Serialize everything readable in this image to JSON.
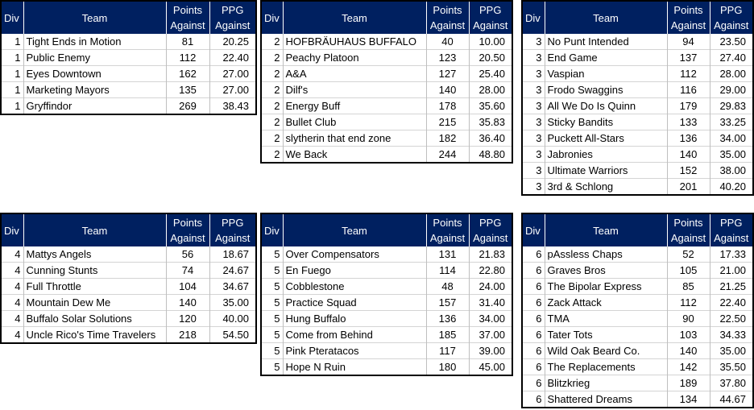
{
  "colors": {
    "header_bg": "#002060",
    "header_text": "#ffffff"
  },
  "headers": {
    "div": "Div",
    "team": "Team",
    "points": "Points\nAgainst",
    "ppg": "PPG\nAgainst"
  },
  "tables": [
    {
      "rows": [
        [
          "1",
          "Tight Ends in Motion",
          "81",
          "20.25"
        ],
        [
          "1",
          "Public Enemy",
          "112",
          "22.40"
        ],
        [
          "1",
          "Eyes Downtown",
          "162",
          "27.00"
        ],
        [
          "1",
          "Marketing Mayors",
          "135",
          "27.00"
        ],
        [
          "1",
          "Gryffindor",
          "269",
          "38.43"
        ]
      ]
    },
    {
      "rows": [
        [
          "2",
          "HOFBRÄUHAUS BUFFALO",
          "40",
          "10.00"
        ],
        [
          "2",
          "Peachy Platoon",
          "123",
          "20.50"
        ],
        [
          "2",
          "A&A",
          "127",
          "25.40"
        ],
        [
          "2",
          "Dilf's",
          "140",
          "28.00"
        ],
        [
          "2",
          "Energy Buff",
          "178",
          "35.60"
        ],
        [
          "2",
          "Bullet Club",
          "215",
          "35.83"
        ],
        [
          "2",
          "slytherin that end zone",
          "182",
          "36.40"
        ],
        [
          "2",
          "We Back",
          "244",
          "48.80"
        ]
      ]
    },
    {
      "rows": [
        [
          "3",
          "No Punt Intended",
          "94",
          "23.50"
        ],
        [
          "3",
          "End Game",
          "137",
          "27.40"
        ],
        [
          "3",
          "Vaspian",
          "112",
          "28.00"
        ],
        [
          "3",
          "Frodo Swaggins",
          "116",
          "29.00"
        ],
        [
          "3",
          "All We Do Is Quinn",
          "179",
          "29.83"
        ],
        [
          "3",
          "Sticky Bandits",
          "133",
          "33.25"
        ],
        [
          "3",
          "Puckett All-Stars",
          "136",
          "34.00"
        ],
        [
          "3",
          "Jabronies",
          "140",
          "35.00"
        ],
        [
          "3",
          "Ultimate Warriors",
          "152",
          "38.00"
        ],
        [
          "3",
          "3rd & Schlong",
          "201",
          "40.20"
        ]
      ]
    },
    {
      "rows": [
        [
          "4",
          "Mattys Angels",
          "56",
          "18.67"
        ],
        [
          "4",
          "Cunning Stunts",
          "74",
          "24.67"
        ],
        [
          "4",
          "Full Throttle",
          "104",
          "34.67"
        ],
        [
          "4",
          "Mountain Dew Me",
          "140",
          "35.00"
        ],
        [
          "4",
          "Buffalo Solar Solutions",
          "120",
          "40.00"
        ],
        [
          "4",
          "Uncle Rico's Time Travelers",
          "218",
          "54.50"
        ]
      ]
    },
    {
      "rows": [
        [
          "5",
          "Over Compensators",
          "131",
          "21.83"
        ],
        [
          "5",
          "En Fuego",
          "114",
          "22.80"
        ],
        [
          "5",
          "Cobblestone",
          "48",
          "24.00"
        ],
        [
          "5",
          "Practice Squad",
          "157",
          "31.40"
        ],
        [
          "5",
          "Hung Buffalo",
          "136",
          "34.00"
        ],
        [
          "5",
          "Come from Behind",
          "185",
          "37.00"
        ],
        [
          "5",
          "Pink Pteratacos",
          "117",
          "39.00"
        ],
        [
          "5",
          "Hope N Ruin",
          "180",
          "45.00"
        ]
      ]
    },
    {
      "rows": [
        [
          "6",
          "pAssless Chaps",
          "52",
          "17.33"
        ],
        [
          "6",
          "Graves Bros",
          "105",
          "21.00"
        ],
        [
          "6",
          "The Bipolar Express",
          "85",
          "21.25"
        ],
        [
          "6",
          "Zack Attack",
          "112",
          "22.40"
        ],
        [
          "6",
          "TMA",
          "90",
          "22.50"
        ],
        [
          "6",
          "Tater Tots",
          "103",
          "34.33"
        ],
        [
          "6",
          "Wild Oak Beard Co.",
          "140",
          "35.00"
        ],
        [
          "6",
          "The Replacements",
          "142",
          "35.50"
        ],
        [
          "6",
          "Blitzkrieg",
          "189",
          "37.80"
        ],
        [
          "6",
          "Shattered Dreams",
          "134",
          "44.67"
        ]
      ]
    }
  ]
}
